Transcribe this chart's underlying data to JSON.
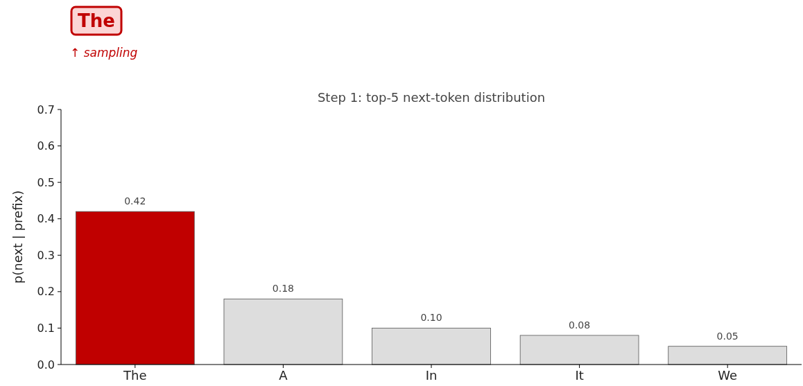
{
  "chart_data": {
    "type": "bar",
    "title": "Step 1: top-5 next-token distribution",
    "ylabel": "p(next | prefix)",
    "categories": [
      "The",
      "A",
      "In",
      "It",
      "We"
    ],
    "values": [
      0.42,
      0.18,
      0.1,
      0.08,
      0.05
    ],
    "colors": [
      "#c00000",
      "#dddddd",
      "#dddddd",
      "#dddddd",
      "#dddddd"
    ],
    "value_labels": [
      "0.42",
      "0.18",
      "0.10",
      "0.08",
      "0.05"
    ],
    "ylim": [
      0,
      0.7
    ],
    "yticks": [
      {
        "value": 0,
        "label": "0.0"
      },
      {
        "value": 0.1,
        "label": "0.1"
      },
      {
        "value": 0.2,
        "label": "0.2"
      },
      {
        "value": 0.3,
        "label": "0.3"
      },
      {
        "value": 0.4,
        "label": "0.4"
      },
      {
        "value": 0.5,
        "label": "0.5"
      },
      {
        "value": 0.6,
        "label": "0.6"
      },
      {
        "value": 0.7,
        "label": "0.7"
      }
    ],
    "grid": false,
    "annotations": [
      "The",
      "↑ sampling"
    ]
  }
}
